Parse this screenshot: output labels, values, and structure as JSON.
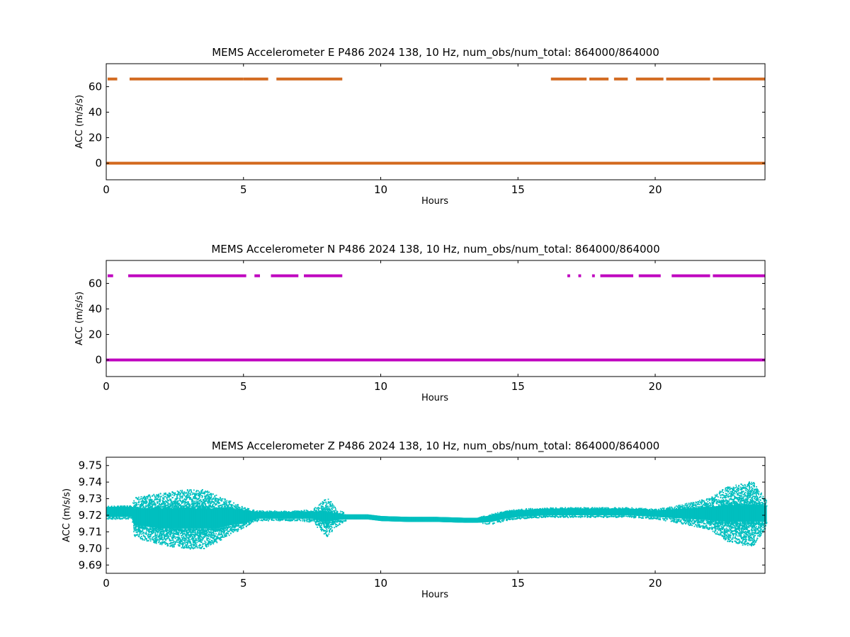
{
  "chart_data": [
    {
      "type": "scatter",
      "title": "MEMS Accelerometer E P486 2024 138, 10 Hz, num_obs/num_total: 864000/864000",
      "xlabel": "Hours",
      "ylabel": "ACC (m/s/s)",
      "xlim": [
        0,
        24
      ],
      "ylim": [
        -13,
        78
      ],
      "xticks": [
        0,
        5,
        10,
        15,
        20
      ],
      "yticks": [
        0,
        20,
        40,
        60
      ],
      "color": "#d2691e",
      "series": [
        {
          "level": 0,
          "segments": [
            [
              0,
              24
            ]
          ]
        },
        {
          "level": 66,
          "segments": [
            [
              0.05,
              0.4
            ],
            [
              0.85,
              5.0
            ],
            [
              5.0,
              5.9
            ],
            [
              6.2,
              8.6
            ],
            [
              16.2,
              17.5
            ],
            [
              17.6,
              18.3
            ],
            [
              18.5,
              19.0
            ],
            [
              19.3,
              20.3
            ],
            [
              20.4,
              22.0
            ],
            [
              22.1,
              24
            ]
          ]
        }
      ]
    },
    {
      "type": "scatter",
      "title": "MEMS Accelerometer N P486 2024 138, 10 Hz, num_obs/num_total: 864000/864000",
      "xlabel": "Hours",
      "ylabel": "ACC (m/s/s)",
      "xlim": [
        0,
        24
      ],
      "ylim": [
        -13,
        78
      ],
      "xticks": [
        0,
        5,
        10,
        15,
        20
      ],
      "yticks": [
        0,
        20,
        40,
        60
      ],
      "color": "#bf00bf",
      "series": [
        {
          "level": 0,
          "segments": [
            [
              0,
              24
            ]
          ]
        },
        {
          "level": 66,
          "segments": [
            [
              0.05,
              0.25
            ],
            [
              0.8,
              5.1
            ],
            [
              5.4,
              5.6
            ],
            [
              6.0,
              7.0
            ],
            [
              7.2,
              8.6
            ],
            [
              16.8,
              16.9
            ],
            [
              17.2,
              17.3
            ],
            [
              17.7,
              17.8
            ],
            [
              18.0,
              19.2
            ],
            [
              19.4,
              20.2
            ],
            [
              20.6,
              22.0
            ],
            [
              22.1,
              24
            ]
          ]
        }
      ]
    },
    {
      "type": "scatter",
      "title": "MEMS Accelerometer Z P486 2024 138, 10 Hz, num_obs/num_total: 864000/864000",
      "xlabel": "Hours",
      "ylabel": "ACC (m/s/s)",
      "xlim": [
        0,
        24
      ],
      "ylim": [
        9.685,
        9.755
      ],
      "xticks": [
        0,
        5,
        10,
        15,
        20
      ],
      "yticks": [
        9.69,
        9.7,
        9.71,
        9.72,
        9.73,
        9.74,
        9.75
      ],
      "ytick_labels": [
        "9.69",
        "9.70",
        "9.71",
        "9.72",
        "9.73",
        "9.74",
        "9.75"
      ],
      "color": "#00bfbf",
      "series": [
        {
          "x": [
            0,
            0.9,
            1.0,
            2.0,
            3.0,
            3.5,
            4.0,
            4.5,
            5.0,
            5.5,
            6.0,
            7.0,
            7.5,
            8.0,
            8.3,
            8.7,
            9.5,
            10,
            11,
            12,
            13,
            13.5,
            14,
            14.5,
            15,
            16,
            17,
            18,
            19,
            20,
            21,
            22,
            22.5,
            23,
            23.5,
            24
          ],
          "center": [
            9.722,
            9.722,
            9.719,
            9.718,
            9.718,
            9.718,
            9.718,
            9.719,
            9.719,
            9.72,
            9.72,
            9.72,
            9.72,
            9.719,
            9.719,
            9.719,
            9.719,
            9.718,
            9.7175,
            9.7175,
            9.717,
            9.717,
            9.718,
            9.72,
            9.721,
            9.722,
            9.722,
            9.722,
            9.722,
            9.721,
            9.721,
            9.721,
            9.721,
            9.721,
            9.721,
            9.721
          ],
          "core_hw": [
            0.003,
            0.003,
            0.005,
            0.006,
            0.006,
            0.006,
            0.006,
            0.005,
            0.004,
            0.002,
            0.002,
            0.002,
            0.002,
            0.003,
            0.002,
            0.0015,
            0.0015,
            0.0015,
            0.0015,
            0.0015,
            0.0015,
            0.0015,
            0.002,
            0.002,
            0.002,
            0.002,
            0.002,
            0.002,
            0.002,
            0.002,
            0.003,
            0.004,
            0.005,
            0.005,
            0.005,
            0.005
          ],
          "spread": [
            0.004,
            0.004,
            0.012,
            0.016,
            0.018,
            0.018,
            0.014,
            0.01,
            0.006,
            0.003,
            0.003,
            0.003,
            0.004,
            0.012,
            0.006,
            0.002,
            0.002,
            0.002,
            0.002,
            0.002,
            0.002,
            0.002,
            0.003,
            0.003,
            0.003,
            0.003,
            0.003,
            0.003,
            0.003,
            0.003,
            0.006,
            0.01,
            0.016,
            0.018,
            0.02,
            0.008
          ]
        }
      ]
    }
  ]
}
